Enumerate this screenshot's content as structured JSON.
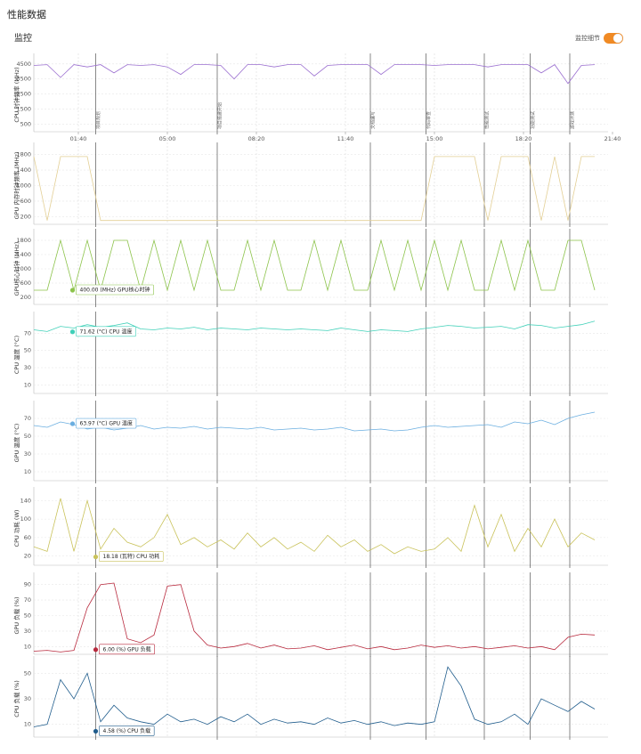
{
  "header": {
    "title": "性能数据",
    "section": "监控",
    "toggle_label": "监控细节",
    "toggle_on": true
  },
  "chart_data": [
    {
      "type": "line",
      "ylabel": "CPU 时钟频率 (MHz)",
      "color": "#9b6fd0",
      "xlim": [
        0,
        1290
      ],
      "xticks": [
        {
          "value": 100,
          "label": "01:40"
        },
        {
          "value": 300,
          "label": "05:00"
        },
        {
          "value": 500,
          "label": "08:20"
        },
        {
          "value": 700,
          "label": "11:40"
        },
        {
          "value": 900,
          "label": "15:00"
        },
        {
          "value": 1100,
          "label": "18:20"
        },
        {
          "value": 1300,
          "label": "21:40"
        }
      ],
      "events": [
        {
          "x": 139,
          "label": "项目规划"
        },
        {
          "x": 412,
          "label": "项目搭建开始"
        },
        {
          "x": 756,
          "label": "文档编写"
        },
        {
          "x": 881,
          "label": "代码审查"
        },
        {
          "x": 1012,
          "label": "性能测试"
        },
        {
          "x": 1115,
          "label": "功能测试"
        },
        {
          "x": 1204,
          "label": "游戏评测"
        }
      ],
      "x": [
        0,
        30,
        60,
        90,
        120,
        150,
        180,
        210,
        240,
        270,
        300,
        330,
        360,
        390,
        420,
        450,
        480,
        510,
        540,
        570,
        600,
        630,
        660,
        690,
        720,
        750,
        780,
        810,
        840,
        870,
        900,
        930,
        960,
        990,
        1020,
        1050,
        1080,
        1110,
        1140,
        1170,
        1200,
        1230,
        1260
      ],
      "values": [
        4400,
        4450,
        3600,
        4450,
        4300,
        4450,
        3900,
        4450,
        4400,
        4450,
        4300,
        3800,
        4450,
        4450,
        4400,
        3500,
        4450,
        4450,
        4300,
        4450,
        4450,
        3700,
        4400,
        4450,
        4450,
        4450,
        3800,
        4450,
        4450,
        4450,
        4400,
        4450,
        4450,
        4450,
        4300,
        4450,
        4450,
        4450,
        3900,
        4450,
        3200,
        4400,
        4450
      ],
      "ylim": [
        0,
        4900
      ],
      "yticks": [
        500,
        1500,
        2500,
        3500,
        4500
      ]
    },
    {
      "type": "line",
      "ylabel": "GPU 内存时钟频率 (MHz)",
      "color": "#e3cf95",
      "x": [
        0,
        30,
        60,
        90,
        120,
        150,
        180,
        210,
        240,
        270,
        300,
        330,
        360,
        390,
        420,
        450,
        480,
        510,
        540,
        570,
        600,
        630,
        660,
        690,
        720,
        750,
        780,
        810,
        840,
        870,
        900,
        930,
        960,
        990,
        1020,
        1050,
        1080,
        1110,
        1140,
        1170,
        1200,
        1230,
        1260
      ],
      "values": [
        1750,
        100,
        1750,
        1750,
        1750,
        100,
        100,
        100,
        100,
        100,
        100,
        100,
        100,
        100,
        100,
        100,
        100,
        100,
        100,
        100,
        100,
        100,
        100,
        100,
        100,
        100,
        100,
        100,
        100,
        100,
        1750,
        1750,
        1750,
        1750,
        100,
        1750,
        1750,
        1750,
        100,
        1750,
        100,
        1750,
        1750
      ],
      "ylim": [
        0,
        2000
      ],
      "yticks": [
        200,
        600,
        1000,
        1400,
        1800
      ]
    },
    {
      "type": "line",
      "ylabel": "GPU核心时钟 (MHz)",
      "color": "#8cc34a",
      "x": [
        0,
        30,
        60,
        90,
        120,
        150,
        180,
        210,
        240,
        270,
        300,
        330,
        360,
        390,
        420,
        450,
        480,
        510,
        540,
        570,
        600,
        630,
        660,
        690,
        720,
        750,
        780,
        810,
        840,
        870,
        900,
        930,
        960,
        990,
        1020,
        1050,
        1080,
        1110,
        1140,
        1170,
        1200,
        1230,
        1260
      ],
      "values": [
        400,
        400,
        1800,
        400,
        1800,
        400,
        1800,
        1800,
        400,
        1800,
        400,
        1800,
        400,
        1800,
        400,
        400,
        1800,
        400,
        1800,
        400,
        400,
        1800,
        400,
        1800,
        400,
        400,
        1800,
        400,
        1800,
        400,
        1800,
        400,
        1800,
        400,
        400,
        1800,
        400,
        1800,
        400,
        400,
        1800,
        1800,
        400
      ],
      "ylim": [
        0,
        2000
      ],
      "yticks": [
        200,
        600,
        1000,
        1400,
        1800
      ],
      "tooltip": {
        "x": 87,
        "value": 400,
        "label": "400.00 (MHz) GPU核心时钟"
      }
    },
    {
      "type": "line",
      "ylabel": "CPU 温度 (°C)",
      "color": "#3fd0b8",
      "x": [
        0,
        30,
        60,
        90,
        120,
        150,
        180,
        210,
        240,
        270,
        300,
        330,
        360,
        390,
        420,
        450,
        480,
        510,
        540,
        570,
        600,
        630,
        660,
        690,
        720,
        750,
        780,
        810,
        840,
        870,
        900,
        930,
        960,
        990,
        1020,
        1050,
        1080,
        1110,
        1140,
        1170,
        1200,
        1230,
        1260
      ],
      "values": [
        74,
        72,
        78,
        76,
        80,
        77,
        79,
        82,
        75,
        74,
        76,
        75,
        77,
        74,
        76,
        75,
        74,
        76,
        75,
        74,
        75,
        74,
        73,
        76,
        74,
        72,
        74,
        73,
        72,
        75,
        77,
        79,
        78,
        76,
        77,
        78,
        75,
        80,
        79,
        76,
        78,
        80,
        84
      ],
      "ylim": [
        0,
        90
      ],
      "yticks": [
        10,
        30,
        50,
        70
      ],
      "tooltip": {
        "x": 87,
        "value": 71.62,
        "label": "71.62 (°C) CPU 温度"
      }
    },
    {
      "type": "line",
      "ylabel": "GPU 温度 (°C)",
      "color": "#6aaee0",
      "x": [
        0,
        30,
        60,
        90,
        120,
        150,
        180,
        210,
        240,
        270,
        300,
        330,
        360,
        390,
        420,
        450,
        480,
        510,
        540,
        570,
        600,
        630,
        660,
        690,
        720,
        750,
        780,
        810,
        840,
        870,
        900,
        930,
        960,
        990,
        1020,
        1050,
        1080,
        1110,
        1140,
        1170,
        1200,
        1230,
        1260
      ],
      "values": [
        62,
        60,
        66,
        63,
        58,
        60,
        57,
        59,
        62,
        58,
        60,
        59,
        61,
        58,
        60,
        59,
        58,
        60,
        57,
        58,
        59,
        57,
        58,
        60,
        56,
        57,
        58,
        56,
        57,
        60,
        62,
        60,
        61,
        62,
        63,
        60,
        66,
        64,
        68,
        63,
        70,
        74,
        77
      ],
      "ylim": [
        0,
        85
      ],
      "yticks": [
        10,
        30,
        50,
        70
      ],
      "tooltip": {
        "x": 87,
        "value": 63.97,
        "label": "63.97 (°C) GPU 温度"
      }
    },
    {
      "type": "line",
      "ylabel": "CPU 功耗 (W)",
      "color": "#c9c25a",
      "x": [
        0,
        30,
        60,
        90,
        120,
        150,
        180,
        210,
        240,
        270,
        300,
        330,
        360,
        390,
        420,
        450,
        480,
        510,
        540,
        570,
        600,
        630,
        660,
        690,
        720,
        750,
        780,
        810,
        840,
        870,
        900,
        930,
        960,
        990,
        1020,
        1050,
        1080,
        1110,
        1140,
        1170,
        1200,
        1230,
        1260
      ],
      "values": [
        40,
        30,
        145,
        30,
        140,
        35,
        80,
        50,
        40,
        60,
        110,
        45,
        60,
        40,
        55,
        35,
        70,
        40,
        60,
        35,
        50,
        30,
        65,
        40,
        55,
        30,
        45,
        25,
        40,
        30,
        35,
        60,
        30,
        130,
        40,
        110,
        30,
        80,
        40,
        100,
        40,
        70,
        55
      ],
      "ylim": [
        0,
        160
      ],
      "yticks": [
        20,
        60,
        100,
        140
      ],
      "tooltip": {
        "x": 139,
        "value": 18.18,
        "label": "18.18 (瓦特) CPU 功耗"
      }
    },
    {
      "type": "line",
      "ylabel": "GPU 负载 (%)",
      "color": "#b8293d",
      "x": [
        0,
        30,
        60,
        90,
        120,
        150,
        180,
        210,
        240,
        270,
        300,
        330,
        360,
        390,
        420,
        450,
        480,
        510,
        540,
        570,
        600,
        630,
        660,
        690,
        720,
        750,
        780,
        810,
        840,
        870,
        900,
        930,
        960,
        990,
        1020,
        1050,
        1080,
        1110,
        1140,
        1170,
        1200,
        1230,
        1260
      ],
      "values": [
        4,
        5,
        3,
        5,
        60,
        90,
        92,
        20,
        15,
        25,
        88,
        90,
        30,
        12,
        8,
        10,
        14,
        8,
        12,
        7,
        8,
        11,
        6,
        9,
        12,
        7,
        10,
        6,
        8,
        12,
        9,
        11,
        8,
        10,
        7,
        9,
        11,
        8,
        10,
        6,
        22,
        26,
        25
      ],
      "ylim": [
        0,
        100
      ],
      "yticks": [
        10,
        30,
        50,
        70,
        90
      ],
      "tooltip": {
        "x": 139,
        "value": 6,
        "label": "6.00 (%) GPU 负载"
      }
    },
    {
      "type": "line",
      "ylabel": "CPU 负载 (%)",
      "color": "#1f5c8c",
      "x": [
        0,
        30,
        60,
        90,
        120,
        150,
        180,
        210,
        240,
        270,
        300,
        330,
        360,
        390,
        420,
        450,
        480,
        510,
        540,
        570,
        600,
        630,
        660,
        690,
        720,
        750,
        780,
        810,
        840,
        870,
        900,
        930,
        960,
        990,
        1020,
        1050,
        1080,
        1110,
        1140,
        1170,
        1200,
        1230,
        1260
      ],
      "values": [
        8,
        10,
        45,
        30,
        50,
        12,
        25,
        15,
        12,
        10,
        18,
        12,
        14,
        10,
        16,
        12,
        18,
        10,
        14,
        11,
        12,
        10,
        15,
        11,
        13,
        10,
        12,
        9,
        11,
        10,
        12,
        55,
        40,
        14,
        10,
        12,
        18,
        10,
        30,
        25,
        20,
        28,
        22
      ],
      "ylim": [
        0,
        60
      ],
      "yticks": [
        10,
        30,
        50
      ],
      "tooltip": {
        "x": 139,
        "value": 4.58,
        "label": "4.58 (%) CPU 负载"
      }
    }
  ]
}
